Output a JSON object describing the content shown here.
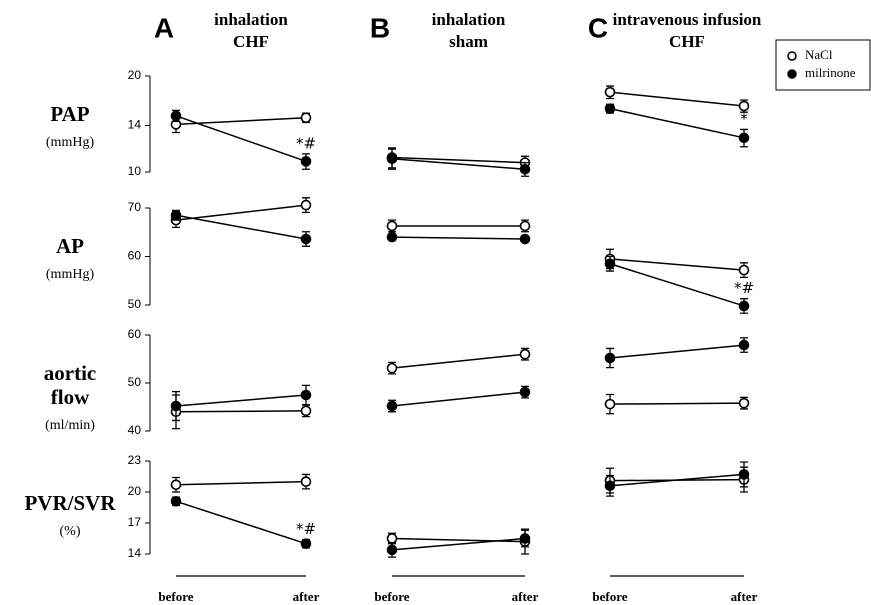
{
  "chart_data": {
    "type": "line",
    "categories": [
      "before",
      "after"
    ],
    "legend": [
      {
        "name": "NaCl",
        "fill": "#ffffff"
      },
      {
        "name": "milrinone",
        "fill": "#000000"
      }
    ],
    "columns": [
      {
        "letter": "A",
        "title": [
          "inhalation",
          "CHF"
        ]
      },
      {
        "letter": "B",
        "title": [
          "inhalation",
          "sham"
        ]
      },
      {
        "letter": "C",
        "title": [
          "intravenous infusion",
          "CHF"
        ]
      }
    ],
    "rows": [
      {
        "label": [
          "PAP"
        ],
        "unit": "(mmHg)",
        "log": true,
        "ylim": [
          10,
          20
        ],
        "yticks": [
          10,
          14,
          20
        ],
        "panels": [
          {
            "series": [
              {
                "values": [
                  14.1,
                  14.8
                ],
                "errors": [
                  0.8,
                  0.5
                ]
              },
              {
                "values": [
                  15.0,
                  10.8
                ],
                "errors": [
                  0.6,
                  0.6
                ]
              }
            ],
            "annotation": "*#"
          },
          {
            "series": [
              {
                "values": [
                  11.1,
                  10.7
                ],
                "errors": [
                  0.8,
                  0.5
                ]
              },
              {
                "values": [
                  11.0,
                  10.2
                ],
                "errors": [
                  0.8,
                  0.5
                ]
              }
            ]
          },
          {
            "series": [
              {
                "values": [
                  17.8,
                  16.1
                ],
                "errors": [
                  0.8,
                  0.7
                ]
              },
              {
                "values": [
                  15.8,
                  12.8
                ],
                "errors": [
                  0.5,
                  0.8
                ]
              }
            ],
            "annotation": "*"
          }
        ]
      },
      {
        "label": [
          "AP"
        ],
        "unit": "(mmHg)",
        "log": false,
        "ylim": [
          50,
          70
        ],
        "yticks": [
          50,
          60,
          70
        ],
        "panels": [
          {
            "series": [
              {
                "values": [
                  67.5,
                  70.6
                ],
                "errors": [
                  1.5,
                  1.5
                ]
              },
              {
                "values": [
                  68.5,
                  63.6
                ],
                "errors": [
                  1.0,
                  1.5
                ]
              }
            ]
          },
          {
            "series": [
              {
                "values": [
                  66.3,
                  66.3
                ],
                "errors": [
                  1.2,
                  1.2
                ]
              },
              {
                "values": [
                  64.0,
                  63.6
                ],
                "errors": [
                  0.5,
                  0.5
                ]
              }
            ]
          },
          {
            "series": [
              {
                "values": [
                  59.5,
                  57.2
                ],
                "errors": [
                  2.0,
                  1.5
                ]
              },
              {
                "values": [
                  58.5,
                  49.8
                ],
                "errors": [
                  1.5,
                  1.5
                ]
              }
            ],
            "annotation": "*#"
          }
        ]
      },
      {
        "label": [
          "aortic",
          "flow"
        ],
        "unit": "(ml/min)",
        "log": false,
        "ylim": [
          40,
          60
        ],
        "yticks": [
          40,
          50,
          60
        ],
        "panels": [
          {
            "series": [
              {
                "values": [
                  44.0,
                  44.2
                ],
                "errors": [
                  3.5,
                  1.2
                ]
              },
              {
                "values": [
                  45.2,
                  47.5
                ],
                "errors": [
                  3.0,
                  2.0
                ]
              }
            ]
          },
          {
            "series": [
              {
                "values": [
                  53.1,
                  56.0
                ],
                "errors": [
                  1.2,
                  1.2
                ]
              },
              {
                "values": [
                  45.2,
                  48.1
                ],
                "errors": [
                  1.2,
                  1.2
                ]
              }
            ]
          },
          {
            "series": [
              {
                "values": [
                  45.6,
                  45.8
                ],
                "errors": [
                  2.0,
                  1.2
                ]
              },
              {
                "values": [
                  55.2,
                  57.9
                ],
                "errors": [
                  2.0,
                  1.5
                ]
              }
            ]
          }
        ]
      },
      {
        "label": [
          "PVR/SVR"
        ],
        "unit": "(%)",
        "log": false,
        "ylim": [
          14,
          23
        ],
        "yticks": [
          14,
          17,
          20,
          23
        ],
        "panels": [
          {
            "series": [
              {
                "values": [
                  20.7,
                  21.0
                ],
                "errors": [
                  0.7,
                  0.7
                ]
              },
              {
                "values": [
                  19.1,
                  15.0
                ],
                "errors": [
                  0.4,
                  0.4
                ]
              }
            ],
            "annotation": "*#"
          },
          {
            "series": [
              {
                "values": [
                  15.5,
                  15.2
                ],
                "errors": [
                  0.5,
                  1.2
                ]
              },
              {
                "values": [
                  14.4,
                  15.5
                ],
                "errors": [
                  0.7,
                  0.8
                ]
              }
            ]
          },
          {
            "series": [
              {
                "values": [
                  21.1,
                  21.2
                ],
                "errors": [
                  1.2,
                  1.2
                ]
              },
              {
                "values": [
                  20.6,
                  21.7
                ],
                "errors": [
                  1.0,
                  1.2
                ]
              }
            ]
          }
        ]
      }
    ]
  }
}
